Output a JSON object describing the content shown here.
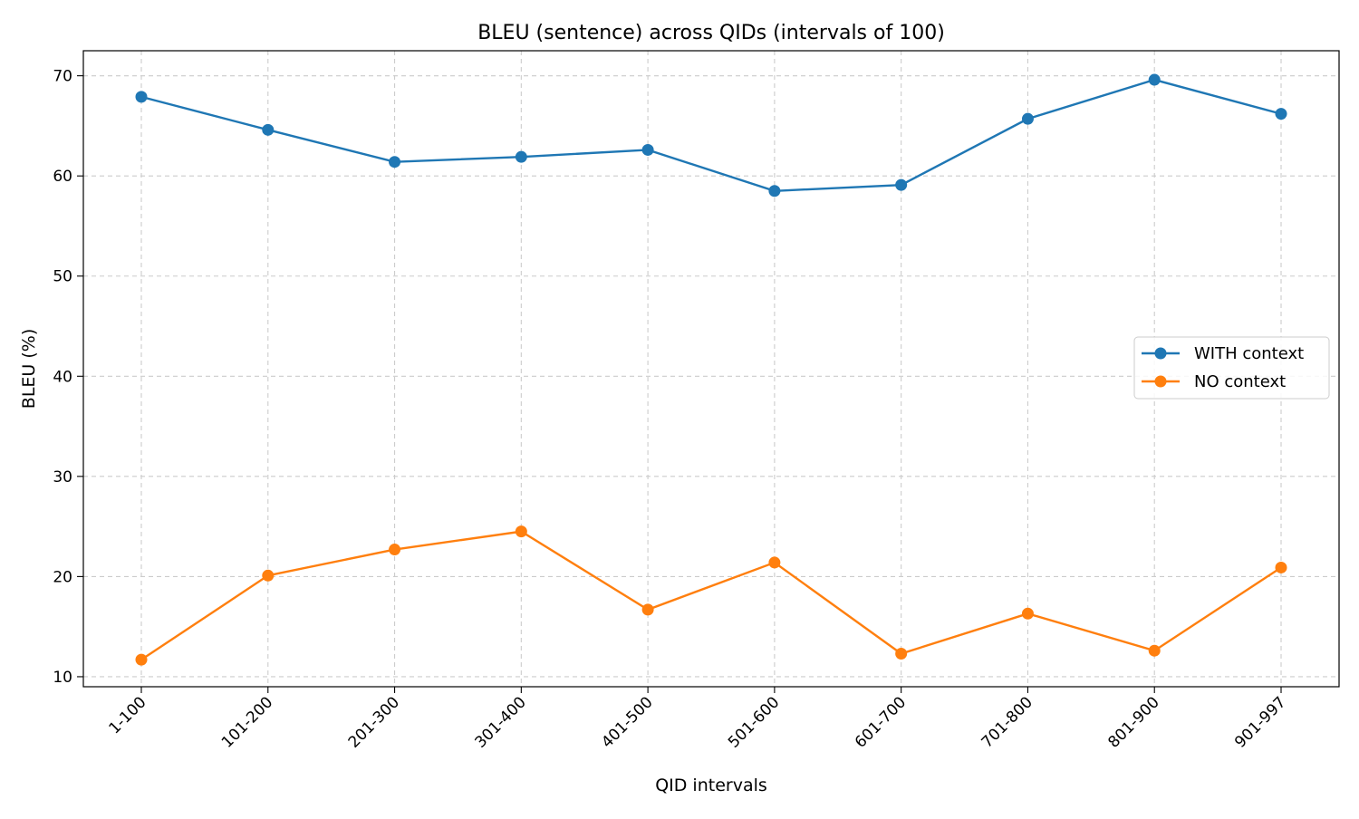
{
  "chart_data": {
    "type": "line",
    "title": "BLEU (sentence) across QIDs (intervals of 100)",
    "xlabel": "QID intervals",
    "ylabel": "BLEU (%)",
    "categories": [
      "1-100",
      "101-200",
      "201-300",
      "301-400",
      "401-500",
      "501-600",
      "601-700",
      "701-800",
      "801-900",
      "901-997"
    ],
    "ylim": [
      9,
      72.5
    ],
    "yticks": [
      10,
      20,
      30,
      40,
      50,
      60,
      70
    ],
    "grid": true,
    "legend_position": "center-right",
    "series": [
      {
        "name": "WITH context",
        "color": "#1f77b4",
        "values": [
          67.9,
          64.6,
          61.4,
          61.9,
          62.6,
          58.5,
          59.1,
          65.7,
          69.6,
          66.2
        ]
      },
      {
        "name": "NO context",
        "color": "#ff7f0e",
        "values": [
          11.7,
          20.1,
          22.7,
          24.5,
          16.7,
          21.4,
          12.3,
          16.3,
          12.6,
          20.9
        ]
      }
    ]
  }
}
